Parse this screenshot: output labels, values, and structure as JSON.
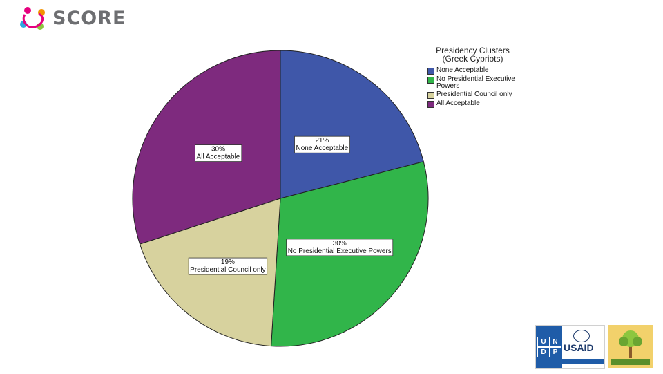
{
  "brand": {
    "name": "SCORE",
    "text_color": "#6d6e71",
    "dot_colors": [
      "#e6007e",
      "#f39200",
      "#2fa8e0",
      "#8cc63f"
    ]
  },
  "chart_data": {
    "type": "pie",
    "title": "Presidency Clusters",
    "subtitle": "(Greek Cypriots)",
    "legend_placement": "top-right",
    "slices": [
      {
        "label": "None Acceptable",
        "value": 21,
        "percent_label": "21%",
        "color": "#3f57a9"
      },
      {
        "label": "No Presidential Executive Powers",
        "value": 30,
        "percent_label": "30%",
        "color": "#31b54a"
      },
      {
        "label": "Presidential Council only",
        "value": 19,
        "percent_label": "19%",
        "color": "#d7d29e"
      },
      {
        "label": "All Acceptable",
        "value": 30,
        "percent_label": "30%",
        "color": "#7e2a7e"
      }
    ],
    "legend_labels": [
      "None Acceptable",
      "No Presidential Executive Powers",
      "Presidential Council only",
      "All Acceptable"
    ]
  },
  "sponsors": {
    "undp_letters": [
      "U",
      "N",
      "D",
      "P"
    ],
    "usaid_text": "USAID",
    "undp_color": "#1f5ca8",
    "seed_color": "#f2d16b"
  }
}
